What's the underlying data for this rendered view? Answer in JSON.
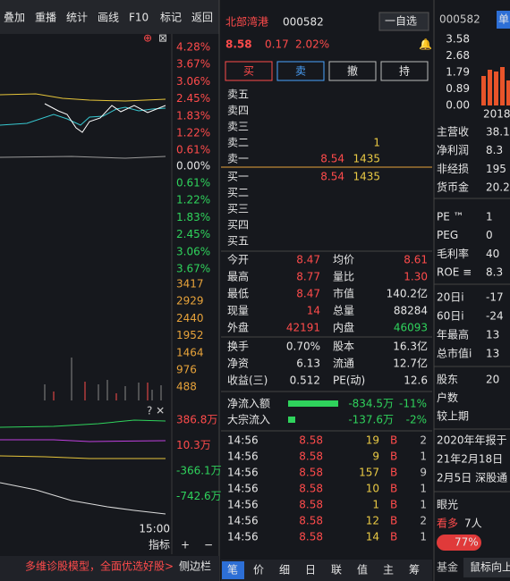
{
  "toolbar": [
    "叠加",
    "重播",
    "统计",
    "画线",
    "F10",
    "标记",
    "返回"
  ],
  "chart": {
    "up_labels": [
      "4.28%",
      "3.67%",
      "3.06%",
      "2.45%",
      "1.83%",
      "1.22%",
      "0.61%"
    ],
    "zero_label": "0.00%",
    "down_labels": [
      "0.61%",
      "1.22%",
      "1.83%",
      "2.45%",
      "3.06%",
      "3.67%"
    ],
    "volume_labels": [
      "3417",
      "2929",
      "2440",
      "1952",
      "1464",
      "976",
      "488"
    ],
    "flow_labels": [
      "386.8万",
      "10.3万",
      "-366.1万",
      "-742.6万"
    ],
    "time_label": "15:00",
    "indicator": "指标",
    "plus": "+",
    "minus": "−"
  },
  "footer": {
    "promo": "多维诊股模型，全面优选好股>",
    "sidebar": "侧边栏"
  },
  "quote": {
    "name": "北部湾港",
    "code": "000582",
    "watchlist": "一自选",
    "price": "8.58",
    "change": "0.17",
    "change_pct": "2.02%"
  },
  "actions": [
    "买",
    "卖",
    "撤",
    "持"
  ],
  "asks": [
    {
      "label": "卖五"
    },
    {
      "label": "卖四"
    },
    {
      "label": "卖三"
    },
    {
      "label": "卖二",
      "volume": "1"
    },
    {
      "label": "卖一",
      "price": "8.54",
      "volume": "1435"
    }
  ],
  "bids": [
    {
      "label": "买一",
      "price": "8.54",
      "volume": "1435"
    },
    {
      "label": "买二"
    },
    {
      "label": "买三"
    },
    {
      "label": "买四"
    },
    {
      "label": "买五"
    }
  ],
  "stats": [
    [
      "今开",
      "8.47",
      "均价",
      "8.61"
    ],
    [
      "最高",
      "8.77",
      "量比",
      "1.30"
    ],
    [
      "最低",
      "8.47",
      "市值",
      "140.2亿"
    ],
    [
      "现量",
      "14",
      "总量",
      "88284"
    ],
    [
      "外盘",
      "42191",
      "内盘",
      "46093"
    ],
    [
      "换手",
      "0.70%",
      "股本",
      "16.3亿"
    ],
    [
      "净资",
      "6.13",
      "流通",
      "12.7亿"
    ],
    [
      "收益(三)",
      "0.512",
      "PE(动)",
      "12.6"
    ]
  ],
  "flows": [
    [
      "净流入额",
      "-834.5万",
      "-11%"
    ],
    [
      "大宗流入",
      "-137.6万",
      "-2%"
    ]
  ],
  "trades": [
    [
      "14:56",
      "8.58",
      "19",
      "B",
      "2"
    ],
    [
      "14:56",
      "8.58",
      "9",
      "B",
      "1"
    ],
    [
      "14:56",
      "8.58",
      "157",
      "B",
      "9"
    ],
    [
      "14:56",
      "8.58",
      "10",
      "B",
      "1"
    ],
    [
      "14:56",
      "8.58",
      "1",
      "B",
      "1"
    ],
    [
      "14:56",
      "8.58",
      "12",
      "B",
      "2"
    ],
    [
      "14:56",
      "8.58",
      "14",
      "B",
      "1"
    ]
  ],
  "tabs": [
    "笔",
    "价",
    "细",
    "日",
    "联",
    "值",
    "主",
    "筹"
  ],
  "side": {
    "code": "000582",
    "corner": "单",
    "mini_ticks": [
      "3.58",
      "2.68",
      "1.79",
      "0.89",
      "0.00"
    ],
    "mini_year": "2018",
    "finance": [
      [
        "主营收",
        "38.1"
      ],
      [
        "净利润",
        "8.3"
      ],
      [
        "非经损",
        "195"
      ],
      [
        "货币金",
        "20.2"
      ]
    ],
    "valuation": [
      [
        "PE ™",
        "1"
      ],
      [
        "PEG",
        "0"
      ],
      [
        "毛利率",
        "40"
      ],
      [
        "ROE ≡",
        "8.3"
      ]
    ],
    "performance": [
      [
        "20日i",
        "-17"
      ],
      [
        "60日i",
        "-24"
      ],
      [
        "年最高",
        "13"
      ],
      [
        "总市值i",
        "13"
      ]
    ],
    "holders": [
      [
        "股东",
        "20"
      ],
      [
        "户数"
      ],
      [
        "较上期"
      ]
    ],
    "notices": [
      "2020年年报于",
      "21年2月18日",
      "2月5日 深股通"
    ],
    "eye": "眼光",
    "bullish": "看多",
    "bullish_count": "7人",
    "bullish_pct": "77%",
    "fund": "基金",
    "mouse": "鼠标向上"
  }
}
